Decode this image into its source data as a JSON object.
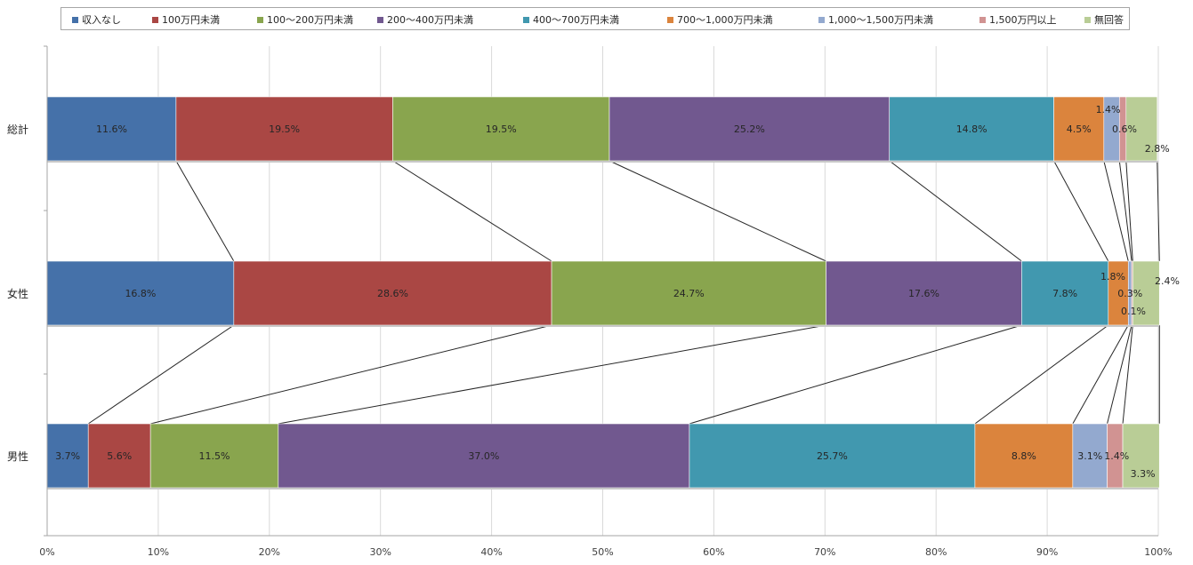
{
  "chart_data": {
    "type": "bar",
    "orientation": "horizontal",
    "stacked": "percent",
    "categories": [
      "総計",
      "女性",
      "男性"
    ],
    "series": [
      {
        "name": "収入なし",
        "color": "#4571a9",
        "values": [
          11.6,
          16.8,
          3.7
        ]
      },
      {
        "name": "100万円未満",
        "color": "#aa4744",
        "values": [
          19.5,
          28.6,
          5.6
        ]
      },
      {
        "name": "100～200万円未満",
        "color": "#89a54e",
        "values": [
          19.5,
          24.7,
          11.5
        ]
      },
      {
        "name": "200～400万円未満",
        "color": "#71588f",
        "values": [
          25.2,
          17.6,
          37.0
        ]
      },
      {
        "name": "400～700万円未満",
        "color": "#4198af",
        "values": [
          14.8,
          7.8,
          25.7
        ]
      },
      {
        "name": "700～1,000万円未満",
        "color": "#db843d",
        "values": [
          4.5,
          1.8,
          8.8
        ]
      },
      {
        "name": "1,000～1,500万円未満",
        "color": "#93a9cf",
        "values": [
          1.4,
          0.3,
          3.1
        ]
      },
      {
        "name": "1,500万円以上",
        "color": "#d19392",
        "values": [
          0.6,
          0.1,
          1.4
        ]
      },
      {
        "name": "無回答",
        "color": "#b9cd96",
        "values": [
          2.8,
          2.4,
          3.3
        ]
      }
    ],
    "data_labels": [
      [
        "11.6%",
        "19.5%",
        "19.5%",
        "25.2%",
        "14.8%",
        "4.5%",
        "1.4%",
        "0.6%",
        "2.8%"
      ],
      [
        "16.8%",
        "28.6%",
        "24.7%",
        "17.6%",
        "7.8%",
        "1.8%",
        "0.3%",
        "0.1%",
        "2.4%"
      ],
      [
        "3.7%",
        "5.6%",
        "11.5%",
        "37.0%",
        "25.7%",
        "8.8%",
        "3.1%",
        "1.4%",
        "3.3%"
      ]
    ],
    "x_ticks": [
      "0%",
      "10%",
      "20%",
      "30%",
      "40%",
      "50%",
      "60%",
      "70%",
      "80%",
      "90%",
      "100%"
    ],
    "xlim": [
      0,
      100
    ],
    "grid": true,
    "series_lines": true,
    "legend": "top"
  }
}
